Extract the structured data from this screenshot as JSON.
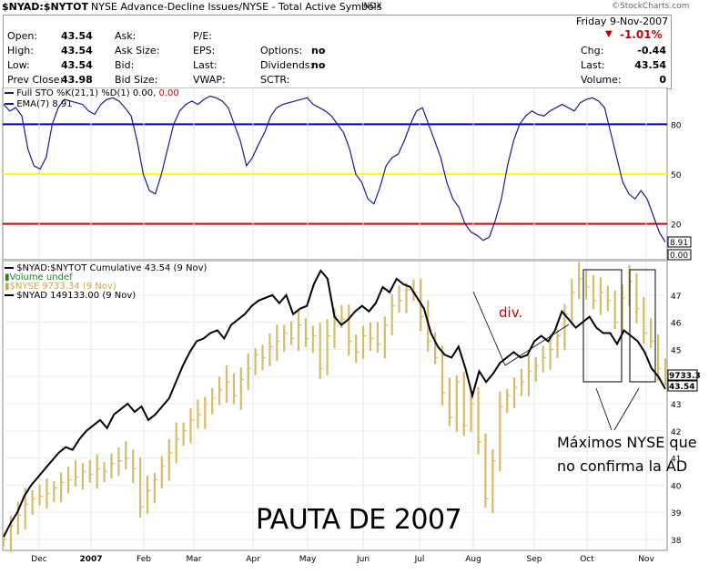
{
  "header": {
    "symbol": "$NYAD:$NYTOT",
    "description": "NYSE Advance-Decline Issues/NYSE - Total Active Symbols",
    "exchange": "INDX",
    "watermark": "©StockCharts.com",
    "date_day": "Friday",
    "date": "9-Nov-2007",
    "change_pct": "-1.01%",
    "quote": [
      {
        "label": "Open:",
        "value": "43.54"
      },
      {
        "label": "High:",
        "value": "43.54"
      },
      {
        "label": "Low:",
        "value": "43.54"
      },
      {
        "label": "Prev Close:",
        "value": "43.98"
      }
    ],
    "quote2": [
      {
        "label": "Ask:",
        "value": ""
      },
      {
        "label": "Ask Size:",
        "value": ""
      },
      {
        "label": "Bid:",
        "value": ""
      },
      {
        "label": "Bid Size:",
        "value": ""
      }
    ],
    "quote3": [
      {
        "label": "P/E:",
        "value": ""
      },
      {
        "label": "EPS:",
        "value": ""
      },
      {
        "label": "Last:",
        "value": ""
      },
      {
        "label": "VWAP:",
        "value": ""
      }
    ],
    "quote4": [
      {
        "label": "Options:",
        "value": "no"
      },
      {
        "label": "Dividends:",
        "value": "no"
      },
      {
        "label": "SCTR:",
        "value": ""
      }
    ],
    "quote5": [
      {
        "label": "Chg:",
        "value": "-0.44"
      },
      {
        "label": "Last:",
        "value": "43.54"
      },
      {
        "label": "Volume:",
        "value": "0"
      }
    ]
  },
  "sto_panel": {
    "legend1_prefix": "Full STO %K(21,1) %D(1) 0.00, ",
    "legend1_red": "0.00",
    "legend2": "EMA(7) 8.91",
    "last_value": "8.91",
    "last_value2": "0.00",
    "levels": [
      {
        "label": "80",
        "value": 80,
        "color": "#0000c8"
      },
      {
        "label": "50",
        "value": 50,
        "color": "#ffff00"
      },
      {
        "label": "20",
        "value": 20,
        "color": "#e00000"
      }
    ]
  },
  "price_panel": {
    "legend1": "$NYAD:$NYTOT Cumulative 43.54 (9 Nov)",
    "legend2": "Volume undef",
    "legend3": "$NYSE 9733.34 (9 Nov)",
    "legend4": "$NYAD 149133.00 (9 Nov)",
    "last_value_nyse": "9733.3",
    "last_value_ad": "43.54",
    "annotation_div": "div.",
    "annotation_max_1": "Máximos NYSE que",
    "annotation_max_2": "no confirma la AD",
    "big_title": "PAUTA DE 2007"
  },
  "chart_data": [
    {
      "type": "line",
      "title": "Full STO %K(21,1) %D(1)",
      "ylim": [
        0,
        100
      ],
      "y_ticks": [
        "80",
        "50",
        "20"
      ],
      "series": [
        {
          "name": "EMA(7) 8.91",
          "color": "#1a1a9a",
          "values": [
            92,
            88,
            90,
            85,
            65,
            55,
            53,
            60,
            80,
            90,
            95,
            94,
            93,
            92,
            88,
            86,
            92,
            95,
            96,
            94,
            90,
            85,
            70,
            50,
            40,
            38,
            50,
            65,
            80,
            88,
            92,
            94,
            92,
            95,
            97,
            96,
            94,
            90,
            80,
            70,
            55,
            60,
            68,
            75,
            85,
            90,
            92,
            93,
            94,
            95,
            96,
            92,
            90,
            88,
            85,
            80,
            75,
            65,
            50,
            45,
            35,
            32,
            42,
            55,
            60,
            62,
            70,
            80,
            88,
            90,
            80,
            70,
            60,
            45,
            35,
            30,
            20,
            15,
            13,
            10,
            12,
            22,
            35,
            55,
            70,
            80,
            85,
            88,
            86,
            85,
            88,
            90,
            92,
            90,
            88,
            93,
            95,
            96,
            94,
            90,
            75,
            60,
            45,
            38,
            35,
            40,
            35,
            25,
            15,
            9
          ]
        }
      ]
    },
    {
      "type": "line",
      "title": "$NYAD:$NYTOT Cumulative",
      "x_tick_labels": [
        "Dec",
        "2007",
        "Feb",
        "Mar",
        "Apr",
        "May",
        "Jun",
        "Jul",
        "Aug",
        "Sep",
        "Oct",
        "Nov"
      ],
      "ylim": [
        37.8,
        48
      ],
      "y_ticks": [
        "47",
        "46",
        "45",
        "44",
        "43",
        "42",
        "41",
        "40",
        "39",
        "38"
      ],
      "series": [
        {
          "name": "$NYAD:$NYTOT Cumulative 43.54 (9 Nov)",
          "color": "#000000",
          "values": [
            38.1,
            38.6,
            39.0,
            39.6,
            40.0,
            40.3,
            40.6,
            40.9,
            41.2,
            41.4,
            41.3,
            41.7,
            42.0,
            42.2,
            42.4,
            42.1,
            42.6,
            42.8,
            43.0,
            42.7,
            42.9,
            42.4,
            42.6,
            42.9,
            43.2,
            43.8,
            44.4,
            44.9,
            45.3,
            45.4,
            45.6,
            45.7,
            45.4,
            45.9,
            46.1,
            46.3,
            46.6,
            46.8,
            46.9,
            47.0,
            46.7,
            47.0,
            46.3,
            46.5,
            46.6,
            47.4,
            47.9,
            47.6,
            46.2,
            45.9,
            46.1,
            46.4,
            46.6,
            46.4,
            46.7,
            47.3,
            47.1,
            47.6,
            47.4,
            47.3,
            46.9,
            46.5,
            45.6,
            45.1,
            44.8,
            44.7,
            45.1,
            44.3,
            43.3,
            44.2,
            43.8,
            44.1,
            44.5,
            44.7,
            44.9,
            44.7,
            44.8,
            45.3,
            45.5,
            45.3,
            45.7,
            46.4,
            46.1,
            45.8,
            46.0,
            46.2,
            45.8,
            45.6,
            45.6,
            45.2,
            45.7,
            45.5,
            45.3,
            44.9,
            44.3,
            44.0,
            43.54
          ]
        },
        {
          "name": "$NYSE 9733.34 (9 Nov)",
          "color": "#d6bb6a",
          "values": [
            38.0,
            38.5,
            38.9,
            39.3,
            39.5,
            39.6,
            39.7,
            39.9,
            40.1,
            40.2,
            40.3,
            40.5,
            40.4,
            40.6,
            40.5,
            40.8,
            40.9,
            41.0,
            40.6,
            39.2,
            39.8,
            40.2,
            40.7,
            41.2,
            41.7,
            42.0,
            42.4,
            42.6,
            43.0,
            43.2,
            43.5,
            43.8,
            43.3,
            43.9,
            44.3,
            44.8,
            44.7,
            45.1,
            45.3,
            45.6,
            45.4,
            45.9,
            45.4,
            45.5,
            44.3,
            45.5,
            46.2,
            46.1,
            45.3,
            44.9,
            45.5,
            45.4,
            45.2,
            45.9,
            46.6,
            46.8,
            47.2,
            47.1,
            46.2,
            45.3,
            44.7,
            43.4,
            42.5,
            43.8,
            42.2,
            43.0,
            41.6,
            39.5,
            40.9,
            42.9,
            43.3,
            43.6,
            43.8,
            44.2,
            44.4,
            44.7,
            45.0,
            45.5,
            46.3,
            47.1,
            47.6,
            47.3,
            46.8,
            47.1,
            46.8,
            46.0,
            46.9,
            47.5,
            46.5,
            45.6,
            45.3,
            44.3,
            44.0
          ]
        }
      ]
    }
  ]
}
